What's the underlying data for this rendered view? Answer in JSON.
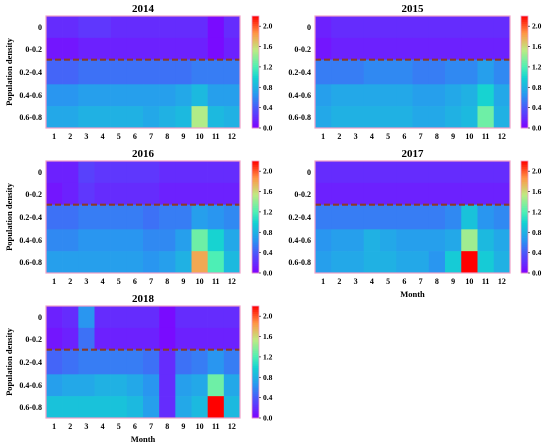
{
  "figure": {
    "ylabel": "Population density",
    "xlabel": "Month"
  },
  "chart_data": [
    {
      "type": "heatmap",
      "title": "2014",
      "x_categories": [
        "1",
        "2",
        "3",
        "4",
        "5",
        "6",
        "7",
        "8",
        "9",
        "10",
        "11",
        "12"
      ],
      "y_categories": [
        "0",
        "0-0.2",
        "0.2-0.4",
        "0.4-0.6",
        "0.6-0.8"
      ],
      "ylabel": "Population density",
      "xlabel": "",
      "colorbar": {
        "min": 0.0,
        "max": 2.2,
        "ticks": [
          "0.0",
          "0.4",
          "0.8",
          "1.2",
          "1.6",
          "2.0"
        ]
      },
      "values": [
        [
          0.2,
          0.2,
          0.25,
          0.25,
          0.2,
          0.2,
          0.2,
          0.2,
          0.2,
          0.2,
          0.05,
          0.2
        ],
        [
          0.1,
          0.1,
          0.15,
          0.15,
          0.15,
          0.15,
          0.15,
          0.15,
          0.15,
          0.15,
          0.05,
          0.15
        ],
        [
          0.45,
          0.45,
          0.5,
          0.5,
          0.5,
          0.5,
          0.5,
          0.5,
          0.5,
          0.55,
          0.55,
          0.55
        ],
        [
          0.65,
          0.65,
          0.7,
          0.7,
          0.7,
          0.7,
          0.7,
          0.7,
          0.75,
          0.85,
          0.7,
          0.7
        ],
        [
          0.75,
          0.75,
          0.8,
          0.8,
          0.8,
          0.8,
          0.75,
          0.8,
          0.85,
          1.5,
          0.85,
          0.8
        ]
      ]
    },
    {
      "type": "heatmap",
      "title": "2015",
      "x_categories": [
        "1",
        "2",
        "3",
        "4",
        "5",
        "6",
        "7",
        "8",
        "9",
        "10",
        "11",
        "12"
      ],
      "y_categories": [
        "0",
        "0-0.2",
        "0.2-0.4",
        "0.4-0.6",
        "0.6-0.8"
      ],
      "ylabel": "",
      "xlabel": "",
      "colorbar": {
        "min": 0.0,
        "max": 2.2,
        "ticks": [
          "0.0",
          "0.4",
          "0.8",
          "1.2",
          "1.6",
          "2.0"
        ]
      },
      "values": [
        [
          0.15,
          0.2,
          0.2,
          0.2,
          0.2,
          0.2,
          0.2,
          0.2,
          0.2,
          0.2,
          0.2,
          0.2
        ],
        [
          0.1,
          0.15,
          0.15,
          0.15,
          0.15,
          0.15,
          0.15,
          0.15,
          0.15,
          0.15,
          0.15,
          0.15
        ],
        [
          0.55,
          0.55,
          0.55,
          0.6,
          0.6,
          0.6,
          0.55,
          0.55,
          0.6,
          0.6,
          0.7,
          0.6
        ],
        [
          0.7,
          0.75,
          0.75,
          0.75,
          0.75,
          0.75,
          0.7,
          0.7,
          0.75,
          0.8,
          1.0,
          0.75
        ],
        [
          0.75,
          0.8,
          0.8,
          0.8,
          0.8,
          0.8,
          0.75,
          0.75,
          0.8,
          0.85,
          1.3,
          0.8
        ]
      ]
    },
    {
      "type": "heatmap",
      "title": "2016",
      "x_categories": [
        "1",
        "2",
        "3",
        "4",
        "5",
        "6",
        "7",
        "8",
        "9",
        "10",
        "11",
        "12"
      ],
      "y_categories": [
        "0",
        "0-0.2",
        "0.2-0.4",
        "0.4-0.6",
        "0.6-0.8"
      ],
      "ylabel": "Population density",
      "xlabel": "",
      "colorbar": {
        "min": 0.0,
        "max": 2.2,
        "ticks": [
          "0.0",
          "0.4",
          "0.8",
          "1.2",
          "1.6",
          "2.0"
        ]
      },
      "values": [
        [
          0.15,
          0.15,
          0.3,
          0.25,
          0.25,
          0.25,
          0.25,
          0.2,
          0.2,
          0.2,
          0.2,
          0.2
        ],
        [
          0.1,
          0.15,
          0.25,
          0.2,
          0.2,
          0.2,
          0.2,
          0.15,
          0.15,
          0.15,
          0.15,
          0.15
        ],
        [
          0.5,
          0.5,
          0.55,
          0.55,
          0.55,
          0.55,
          0.5,
          0.55,
          0.55,
          0.7,
          0.65,
          0.6
        ],
        [
          0.6,
          0.6,
          0.65,
          0.65,
          0.65,
          0.65,
          0.6,
          0.6,
          0.7,
          1.3,
          1.0,
          0.75
        ],
        [
          0.7,
          0.7,
          0.7,
          0.7,
          0.7,
          0.7,
          0.65,
          0.7,
          0.8,
          1.8,
          1.2,
          0.85
        ]
      ]
    },
    {
      "type": "heatmap",
      "title": "2017",
      "x_categories": [
        "1",
        "2",
        "3",
        "4",
        "5",
        "6",
        "7",
        "8",
        "9",
        "10",
        "11",
        "12"
      ],
      "y_categories": [
        "0",
        "0-0.2",
        "0.2-0.4",
        "0.4-0.6",
        "0.6-0.8"
      ],
      "ylabel": "",
      "xlabel": "Month",
      "colorbar": {
        "min": 0.0,
        "max": 2.2,
        "ticks": [
          "0.0",
          "0.4",
          "0.8",
          "1.2",
          "1.6",
          "2.0"
        ]
      },
      "values": [
        [
          0.2,
          0.2,
          0.2,
          0.2,
          0.2,
          0.2,
          0.2,
          0.2,
          0.2,
          0.2,
          0.2,
          0.2
        ],
        [
          0.15,
          0.15,
          0.15,
          0.15,
          0.15,
          0.15,
          0.15,
          0.15,
          0.15,
          0.15,
          0.15,
          0.15
        ],
        [
          0.55,
          0.55,
          0.55,
          0.55,
          0.55,
          0.55,
          0.55,
          0.55,
          0.6,
          0.9,
          0.65,
          0.6
        ],
        [
          0.65,
          0.7,
          0.7,
          0.8,
          0.75,
          0.7,
          0.7,
          0.7,
          0.75,
          1.45,
          0.85,
          0.75
        ],
        [
          0.7,
          0.75,
          0.75,
          0.8,
          0.8,
          0.75,
          0.75,
          0.65,
          0.95,
          2.2,
          0.95,
          0.8
        ]
      ]
    },
    {
      "type": "heatmap",
      "title": "2018",
      "x_categories": [
        "1",
        "2",
        "3",
        "4",
        "5",
        "6",
        "7",
        "8",
        "9",
        "10",
        "11",
        "12"
      ],
      "y_categories": [
        "0",
        "0-0.2",
        "0.2-0.4",
        "0.4-0.6",
        "0.6-0.8"
      ],
      "ylabel": "Population density",
      "xlabel": "Month",
      "colorbar": {
        "min": 0.0,
        "max": 2.2,
        "ticks": [
          "0.0",
          "0.4",
          "0.8",
          "1.2",
          "1.6",
          "2.0"
        ]
      },
      "values": [
        [
          0.15,
          0.2,
          0.65,
          0.2,
          0.2,
          0.2,
          0.2,
          0.05,
          0.2,
          0.2,
          0.2,
          0.2
        ],
        [
          0.1,
          0.15,
          0.5,
          0.15,
          0.15,
          0.15,
          0.15,
          0.05,
          0.15,
          0.15,
          0.15,
          0.15
        ],
        [
          0.45,
          0.5,
          0.55,
          0.55,
          0.55,
          0.55,
          0.5,
          0.2,
          0.5,
          0.55,
          0.65,
          0.55
        ],
        [
          0.7,
          0.75,
          0.75,
          0.8,
          0.8,
          0.75,
          0.65,
          0.2,
          0.7,
          0.75,
          1.3,
          0.75
        ],
        [
          0.9,
          0.9,
          0.9,
          0.9,
          0.9,
          0.85,
          0.7,
          0.2,
          0.75,
          0.85,
          2.2,
          0.85
        ]
      ]
    }
  ]
}
